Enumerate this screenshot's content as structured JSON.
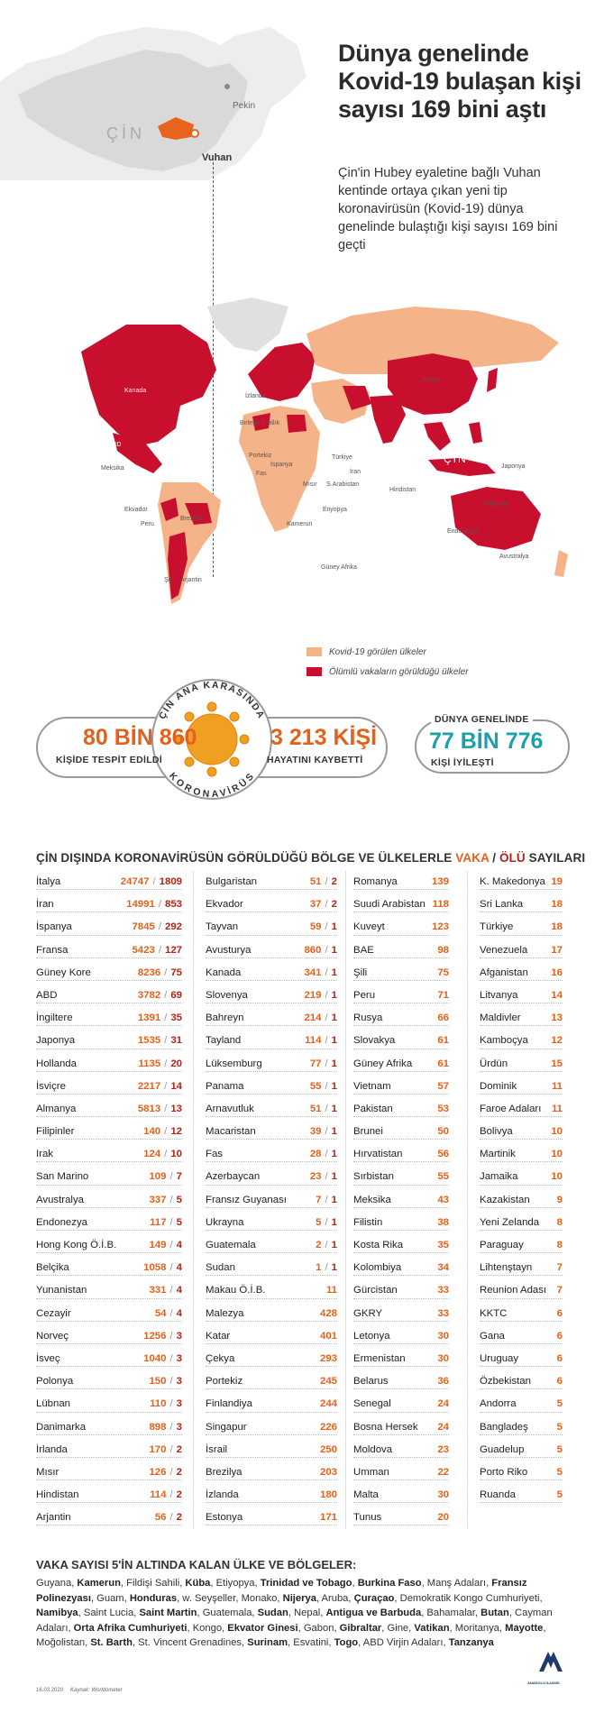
{
  "title": "Dünya genelinde Kovid-19 bulaşan kişi sayısı 169 bini aştı",
  "subtitle": "Çin'in Hubey eyaletine bağlı Vuhan kentinde ortaya çıkan yeni tip koronavirüsün (Kovid-19) dünya genelinde bulaştığı kişi sayısı 169 bini geçti",
  "inset_map": {
    "country": "ÇİN",
    "capital": "Pekin",
    "city": "Vuhan"
  },
  "map_labels": [
    "Rusya",
    "İzlanda",
    "Birleşik Krallık",
    "Portekiz",
    "İspanya",
    "Fas",
    "Türkiye",
    "İran",
    "S.Arabistan",
    "Mısır",
    "Etiyopya",
    "Kamerun",
    "Güney Afrika",
    "ÇİN",
    "Japonya",
    "Hindistan",
    "Filipinler",
    "Endonezya",
    "Avustralya",
    "Kanada",
    "ABD",
    "Meksika",
    "Ekvador",
    "Peru",
    "Brezilya",
    "Arjantin",
    "Şili"
  ],
  "legend": {
    "cases": "Kovid-19 görülen ülkeler",
    "deaths": "Ölümlü vakaların görüldüğü ülkeler",
    "colors": {
      "cases": "#f5b38a",
      "deaths": "#c8102e"
    }
  },
  "stats": {
    "ring_top": "ÇİN ANA KARASINDA",
    "ring_bottom": "KORONAVİRÜS",
    "cases_value": "80 BİN 860",
    "cases_label": "KİŞİDE TESPİT EDİLDİ",
    "deaths_value": "3 213 KİŞİ",
    "deaths_label": "HAYATINI KAYBETTİ",
    "world_label": "DÜNYA GENELİNDE",
    "recovered_value": "77 BİN 776",
    "recovered_label": "KİŞİ İYİLEŞTİ"
  },
  "table_title": {
    "pre": "ÇİN DIŞINDA KORONAVİRÜSÜN GÖRÜLDÜĞÜ BÖLGE VE ÜLKELERLE ",
    "case": "VAKA",
    "slash": " / ",
    "death": "ÖLÜ",
    "post": " SAYILARI"
  },
  "columns": [
    [
      [
        "İtalya",
        "24747",
        "1809"
      ],
      [
        "İran",
        "14991",
        "853"
      ],
      [
        "İspanya",
        "7845",
        "292"
      ],
      [
        "Fransa",
        "5423",
        "127"
      ],
      [
        "Güney Kore",
        "8236",
        "75"
      ],
      [
        "ABD",
        "3782",
        "69"
      ],
      [
        "İngiltere",
        "1391",
        "35"
      ],
      [
        "Japonya",
        "1535",
        "31"
      ],
      [
        "Hollanda",
        "1135",
        "20"
      ],
      [
        "İsviçre",
        "2217",
        "14"
      ],
      [
        "Almanya",
        "5813",
        "13"
      ],
      [
        "Filipinler",
        "140",
        "12"
      ],
      [
        "Irak",
        "124",
        "10"
      ],
      [
        "San Marino",
        "109",
        "7"
      ],
      [
        "Avustralya",
        "337",
        "5"
      ],
      [
        "Endonezya",
        "117",
        "5"
      ],
      [
        "Hong Kong Ö.İ.B.",
        "149",
        "4"
      ],
      [
        "Belçika",
        "1058",
        "4"
      ],
      [
        "Yunanistan",
        "331",
        "4"
      ],
      [
        "Cezayir",
        "54",
        "4"
      ],
      [
        "Norveç",
        "1256",
        "3"
      ],
      [
        "İsveç",
        "1040",
        "3"
      ],
      [
        "Polonya",
        "150",
        "3"
      ],
      [
        "Lübnan",
        "110",
        "3"
      ],
      [
        "Danimarka",
        "898",
        "3"
      ],
      [
        "İrlanda",
        "170",
        "2"
      ],
      [
        "Mısır",
        "126",
        "2"
      ],
      [
        "Hindistan",
        "114",
        "2"
      ],
      [
        "Arjantin",
        "56",
        "2"
      ]
    ],
    [
      [
        "Bulgaristan",
        "51",
        "2"
      ],
      [
        "Ekvador",
        "37",
        "2"
      ],
      [
        "Tayvan",
        "59",
        "1"
      ],
      [
        "Avusturya",
        "860",
        "1"
      ],
      [
        "Kanada",
        "341",
        "1"
      ],
      [
        "Slovenya",
        "219",
        "1"
      ],
      [
        "Bahreyn",
        "214",
        "1"
      ],
      [
        "Tayland",
        "114",
        "1"
      ],
      [
        "Lüksemburg",
        "77",
        "1"
      ],
      [
        "Panama",
        "55",
        "1"
      ],
      [
        "Arnavutluk",
        "51",
        "1"
      ],
      [
        "Macaristan",
        "39",
        "1"
      ],
      [
        "Fas",
        "28",
        "1"
      ],
      [
        "Azerbaycan",
        "23",
        "1"
      ],
      [
        "Fransız Guyanası",
        "7",
        "1"
      ],
      [
        "Ukrayna",
        "5",
        "1"
      ],
      [
        "Guatemala",
        "2",
        "1"
      ],
      [
        "Sudan",
        "1",
        "1"
      ],
      [
        "Makau Ö.İ.B.",
        "11"
      ],
      [
        "Malezya",
        "428"
      ],
      [
        "Katar",
        "401"
      ],
      [
        "Çekya",
        "293"
      ],
      [
        "Portekiz",
        "245"
      ],
      [
        "Finlandiya",
        "244"
      ],
      [
        "Singapur",
        "226"
      ],
      [
        "İsrail",
        "250"
      ],
      [
        "Brezilya",
        "203"
      ],
      [
        "İzlanda",
        "180"
      ],
      [
        "Estonya",
        "171"
      ]
    ],
    [
      [
        "Romanya",
        "139"
      ],
      [
        "Suudi Arabistan",
        "118"
      ],
      [
        "Kuveyt",
        "123"
      ],
      [
        "BAE",
        "98"
      ],
      [
        "Şili",
        "75"
      ],
      [
        "Peru",
        "71"
      ],
      [
        "Rusya",
        "66"
      ],
      [
        "Slovakya",
        "61"
      ],
      [
        "Güney Afrika",
        "61"
      ],
      [
        "Vietnam",
        "57"
      ],
      [
        "Pakistan",
        "53"
      ],
      [
        "Brunei",
        "50"
      ],
      [
        "Hırvatistan",
        "56"
      ],
      [
        "Sırbistan",
        "55"
      ],
      [
        "Meksika",
        "43"
      ],
      [
        "Filistin",
        "38"
      ],
      [
        "Kosta Rika",
        "35"
      ],
      [
        "Kolombiya",
        "34"
      ],
      [
        "Gürcistan",
        "33"
      ],
      [
        "GKRY",
        "33"
      ],
      [
        "Letonya",
        "30"
      ],
      [
        "Ermenistan",
        "30"
      ],
      [
        "Belarus",
        "36"
      ],
      [
        "Senegal",
        "24"
      ],
      [
        "Bosna Hersek",
        "24"
      ],
      [
        "Moldova",
        "23"
      ],
      [
        "Umman",
        "22"
      ],
      [
        "Malta",
        "30"
      ],
      [
        "Tunus",
        "20"
      ]
    ],
    [
      [
        "K. Makedonya",
        "19"
      ],
      [
        "Sri Lanka",
        "18"
      ],
      [
        "Türkiye",
        "18"
      ],
      [
        "Venezuela",
        "17"
      ],
      [
        "Afganistan",
        "16"
      ],
      [
        "Litvanya",
        "14"
      ],
      [
        "Maldivler",
        "13"
      ],
      [
        "Kamboçya",
        "12"
      ],
      [
        "Ürdün",
        "15"
      ],
      [
        "Dominik",
        "11"
      ],
      [
        "Faroe Adaları",
        "11"
      ],
      [
        "Bolivya",
        "10"
      ],
      [
        "Martinik",
        "10"
      ],
      [
        "Jamaika",
        "10"
      ],
      [
        "Kazakistan",
        "9"
      ],
      [
        "Yeni Zelanda",
        "8"
      ],
      [
        "Paraguay",
        "8"
      ],
      [
        "Lihtenştayn",
        "7"
      ],
      [
        "Reunion Adası",
        "7"
      ],
      [
        "KKTC",
        "6"
      ],
      [
        "Gana",
        "6"
      ],
      [
        "Uruguay",
        "6"
      ],
      [
        "Özbekistan",
        "6"
      ],
      [
        "Andorra",
        "5"
      ],
      [
        "Bangladeş",
        "5"
      ],
      [
        "Guadelup",
        "5"
      ],
      [
        "Porto Riko",
        "5"
      ],
      [
        "Ruanda",
        "5"
      ]
    ]
  ],
  "bottom_title": "VAKA SAYISI 5'İN ALTINDA KALAN ÜLKE VE BÖLGELER:",
  "bottom_list": [
    [
      "Guyana",
      0
    ],
    [
      "Kamerun",
      1
    ],
    [
      "Fildişi Sahili",
      0
    ],
    [
      "Küba",
      1
    ],
    [
      "Etiyopya",
      0
    ],
    [
      "Trinidad ve Tobago",
      1
    ],
    [
      "Burkina Faso",
      1
    ],
    [
      "Manş Adaları",
      0
    ],
    [
      "Fransız Polinezyası",
      1
    ],
    [
      "Guam",
      0
    ],
    [
      "Honduras",
      1
    ],
    [
      "w. Seyşeller",
      0
    ],
    [
      "Monako",
      0
    ],
    [
      "Nijerya",
      1
    ],
    [
      "Aruba",
      0
    ],
    [
      "Çuraçao",
      1
    ],
    [
      "Demokratik Kongo Cumhuriyeti",
      0
    ],
    [
      "Namibya",
      1
    ],
    [
      "Saint Lucia",
      0
    ],
    [
      "Saint Martin",
      1
    ],
    [
      "Guatemala",
      0
    ],
    [
      "Sudan",
      1
    ],
    [
      "Nepal",
      0
    ],
    [
      "Antigua ve Barbuda",
      1
    ],
    [
      "Bahamalar",
      0
    ],
    [
      "Butan",
      1
    ],
    [
      "Cayman Adaları",
      0
    ],
    [
      "Orta Afrika Cumhuriyeti",
      1
    ],
    [
      "Kongo",
      0
    ],
    [
      "Ekvator Ginesi",
      1
    ],
    [
      "Gabon",
      0
    ],
    [
      "Gibraltar",
      1
    ],
    [
      "Gine",
      0
    ],
    [
      "Vatikan",
      1
    ],
    [
      "Moritanya",
      0
    ],
    [
      "Mayotte",
      1
    ],
    [
      "Moğolistan",
      0
    ],
    [
      "St. Barth",
      1
    ],
    [
      "St. Vincent Grenadines",
      0
    ],
    [
      "Surinam",
      1
    ],
    [
      "Esvatini",
      0
    ],
    [
      "Togo",
      1
    ],
    [
      "ABD Virjin Adaları",
      0
    ],
    [
      "Tanzanya",
      1
    ]
  ],
  "footer": {
    "date": "16.03.2020",
    "source": "Kaynak: Worldometer",
    "logo": "ANADOLU AJANSI"
  }
}
